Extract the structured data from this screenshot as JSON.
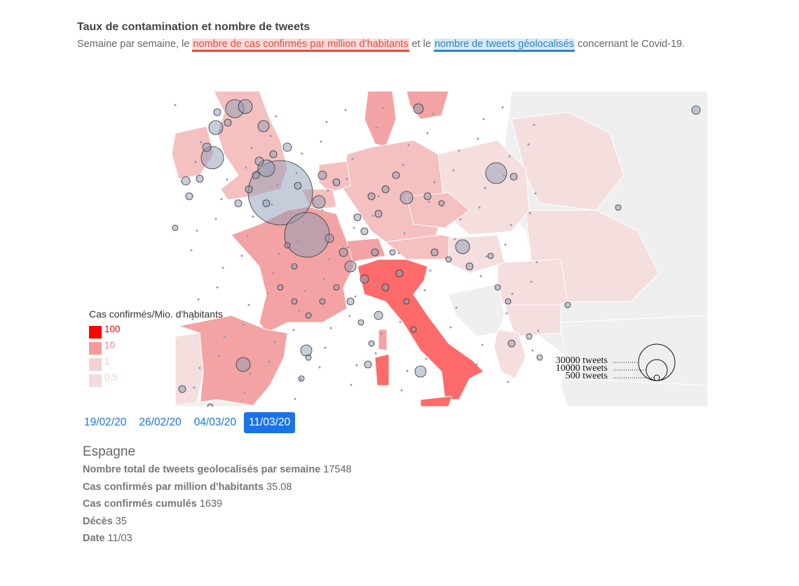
{
  "header": {
    "title": "Taux de contamination et nombre de tweets",
    "subtitle_pre": "Semaine par semaine, le ",
    "subtitle_red": "nombre de cas confirmés par million d’habitants",
    "subtitle_mid": " et le ",
    "subtitle_blue": "nombre de tweets géolocalisés",
    "subtitle_post": " concernant le Covid-19."
  },
  "legend": {
    "title": "Cas confirmés/Mio. d'habitants",
    "items": [
      {
        "label": "100",
        "color": "#ff0000"
      },
      {
        "label": "10",
        "color": "#f59a9a"
      },
      {
        "label": "1",
        "color": "#f2d2d2"
      },
      {
        "label": "0.5",
        "color": "#f0dcdc"
      }
    ]
  },
  "size_legend": {
    "labels": [
      "30000 tweets",
      "10000 tweets",
      "500 tweets"
    ]
  },
  "colors": {
    "high": "#ff6a6a",
    "mid": "#f3a3a3",
    "low": "#f5c0c0",
    "faint": "#f5dede",
    "none": "#efefef",
    "bubble": "#8e9bb5"
  },
  "dates": [
    {
      "label": "19/02/20",
      "active": false
    },
    {
      "label": "26/02/20",
      "active": false
    },
    {
      "label": "04/03/20",
      "active": false
    },
    {
      "label": "11/03/20",
      "active": true
    }
  ],
  "info": {
    "country": "Espagne",
    "rows": [
      {
        "label": "Nombre total de tweets geolocalisés par semaine",
        "value": "17548"
      },
      {
        "label": "Cas confirmés par million d'habitants",
        "value": "35.08"
      },
      {
        "label": "Cas confirmés cumulés",
        "value": "1639"
      },
      {
        "label": "Décès",
        "value": "35"
      },
      {
        "label": "Date",
        "value": "11/03"
      }
    ]
  }
}
